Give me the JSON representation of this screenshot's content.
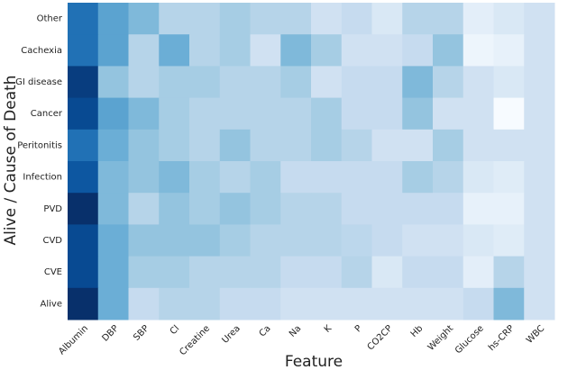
{
  "chart_data": {
    "type": "heatmap",
    "x_label": "Feature",
    "y_label": "Alive / Cause of Death",
    "x": [
      "Albumin",
      "DBP",
      "SBP",
      "Cl",
      "Creatine",
      "Urea",
      "Ca",
      "Na",
      "K",
      "P",
      "CO2CP",
      "Hb",
      "Weight",
      "Glucose",
      "hs-CRP",
      "WBC"
    ],
    "y": [
      "Other",
      "Cachexia",
      "GI disease",
      "Cancer",
      "Peritonitis",
      "Infection",
      "PVD",
      "CVD",
      "CVE",
      "Alive"
    ],
    "colormap": [
      "#f7fbff",
      "#deebf7",
      "#c6dbef",
      "#9ecae1",
      "#6baed6",
      "#4292c6",
      "#2171b5",
      "#08519c",
      "#08306b"
    ],
    "values": [
      [
        0.75,
        0.55,
        0.45,
        0.3,
        0.3,
        0.35,
        0.3,
        0.3,
        0.2,
        0.25,
        0.15,
        0.3,
        0.3,
        0.1,
        0.15,
        0.2
      ],
      [
        0.75,
        0.55,
        0.3,
        0.5,
        0.3,
        0.35,
        0.2,
        0.45,
        0.35,
        0.2,
        0.2,
        0.25,
        0.4,
        0.05,
        0.08,
        0.2
      ],
      [
        0.95,
        0.4,
        0.3,
        0.35,
        0.35,
        0.3,
        0.3,
        0.35,
        0.2,
        0.25,
        0.25,
        0.45,
        0.3,
        0.2,
        0.15,
        0.2
      ],
      [
        0.9,
        0.55,
        0.45,
        0.35,
        0.3,
        0.3,
        0.3,
        0.3,
        0.35,
        0.25,
        0.25,
        0.4,
        0.2,
        0.2,
        0.0,
        0.2
      ],
      [
        0.75,
        0.5,
        0.4,
        0.35,
        0.3,
        0.4,
        0.3,
        0.3,
        0.35,
        0.3,
        0.2,
        0.2,
        0.35,
        0.2,
        0.2,
        0.2
      ],
      [
        0.85,
        0.45,
        0.4,
        0.45,
        0.35,
        0.3,
        0.35,
        0.25,
        0.25,
        0.25,
        0.25,
        0.35,
        0.3,
        0.15,
        0.12,
        0.2
      ],
      [
        1.0,
        0.45,
        0.3,
        0.4,
        0.35,
        0.4,
        0.35,
        0.3,
        0.3,
        0.25,
        0.25,
        0.25,
        0.25,
        0.08,
        0.08,
        0.2
      ],
      [
        0.9,
        0.5,
        0.4,
        0.4,
        0.4,
        0.35,
        0.3,
        0.3,
        0.3,
        0.28,
        0.25,
        0.2,
        0.2,
        0.15,
        0.12,
        0.2
      ],
      [
        0.9,
        0.5,
        0.35,
        0.35,
        0.3,
        0.3,
        0.3,
        0.25,
        0.25,
        0.3,
        0.15,
        0.25,
        0.25,
        0.1,
        0.3,
        0.2
      ],
      [
        1.0,
        0.5,
        0.25,
        0.3,
        0.3,
        0.25,
        0.25,
        0.2,
        0.2,
        0.2,
        0.2,
        0.2,
        0.2,
        0.25,
        0.45,
        0.2
      ]
    ]
  }
}
